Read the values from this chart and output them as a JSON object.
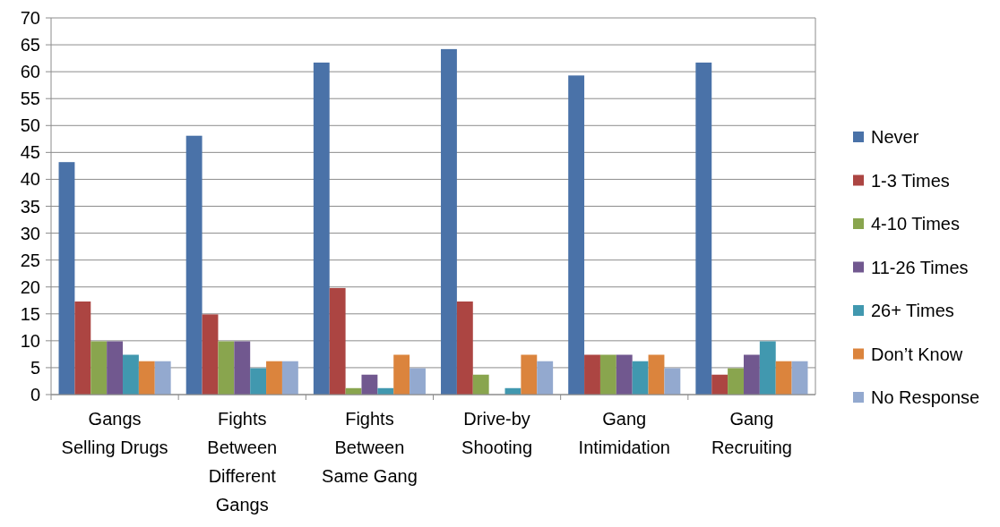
{
  "chart_data": {
    "type": "bar",
    "categories": [
      "Gangs Selling Drugs",
      "Fights Between Different Gangs",
      "Fights Between Same Gang",
      "Drive-by Shooting",
      "Gang Intimidation",
      "Gang Recruiting"
    ],
    "series": [
      {
        "name": "Never",
        "color": "#4a72a8",
        "values": [
          43.2,
          48.1,
          61.7,
          64.2,
          59.3,
          61.7
        ]
      },
      {
        "name": "1-3 Times",
        "color": "#ac4542",
        "values": [
          17.3,
          14.9,
          19.8,
          17.3,
          7.4,
          3.7
        ]
      },
      {
        "name": "4-10 Times",
        "color": "#89a54e",
        "values": [
          9.9,
          9.9,
          1.2,
          3.7,
          7.4,
          4.9
        ]
      },
      {
        "name": "11-26 Times",
        "color": "#71588f",
        "values": [
          9.9,
          9.9,
          3.7,
          0,
          7.4,
          7.4
        ]
      },
      {
        "name": "26+ Times",
        "color": "#4198af",
        "values": [
          7.4,
          4.9,
          1.2,
          1.2,
          6.2,
          9.9
        ]
      },
      {
        "name": "Don’t Know",
        "color": "#db843d",
        "values": [
          6.2,
          6.2,
          7.4,
          7.4,
          7.4,
          6.2
        ]
      },
      {
        "name": "No Response",
        "color": "#93a9cf",
        "values": [
          6.2,
          6.2,
          4.9,
          6.2,
          4.9,
          6.2
        ]
      }
    ],
    "ylim": [
      0,
      70
    ],
    "yticks": [
      0,
      5,
      10,
      15,
      20,
      25,
      30,
      35,
      40,
      45,
      50,
      55,
      60,
      65,
      70
    ],
    "grid": "y",
    "legend": "right"
  }
}
